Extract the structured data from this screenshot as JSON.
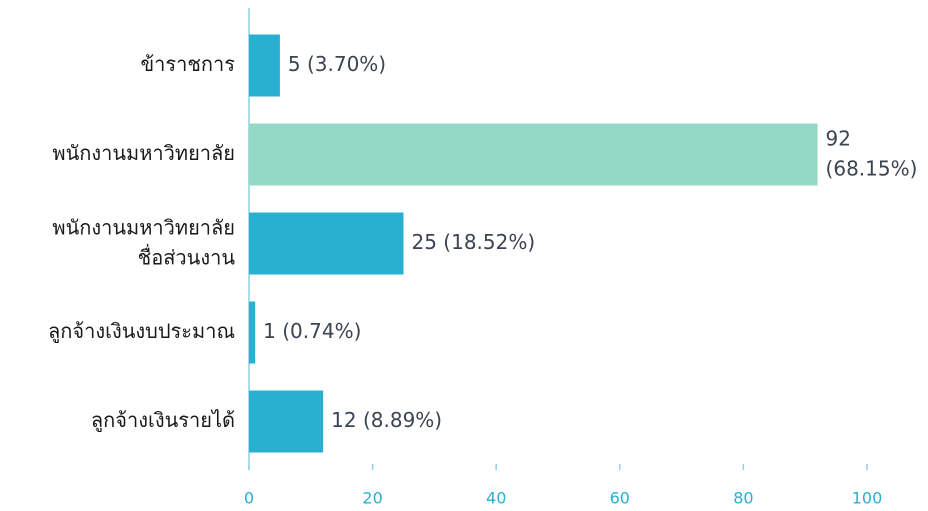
{
  "chart_data": {
    "type": "hbar",
    "categories": [
      "ข้าราชการ",
      "พนักงานมหาวิทยาลัย",
      "พนักงานมหาวิทยาลัย\nชื่อส่วนงาน",
      "ลูกจ้างเงินงบประมาณ",
      "ลูกจ้างเงินรายได้"
    ],
    "values": [
      5,
      92,
      25,
      1,
      12
    ],
    "value_labels": [
      "5 (3.70%)",
      "92\n(68.15%)",
      "25 (18.52%)",
      "1 (0.74%)",
      "12 (8.89%)"
    ],
    "colors": [
      "#29b0d0",
      "#94d8c6",
      "#29b0d0",
      "#29b0d0",
      "#29b0d0"
    ],
    "xlim": [
      0,
      100
    ],
    "xticks": [
      0,
      20,
      40,
      60,
      80,
      100
    ],
    "grid": false
  }
}
